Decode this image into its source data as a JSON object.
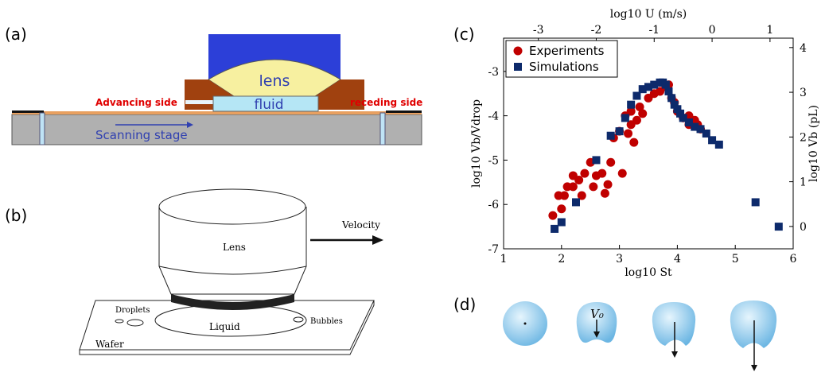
{
  "panels": {
    "a": {
      "label": "(a)",
      "lens": "lens",
      "fluid": "fluid",
      "advancing": "Advancing side",
      "receding": "receding side",
      "stage": "Scanning stage"
    },
    "b": {
      "label": "(b)",
      "lens": "Lens",
      "velocity": "Velocity",
      "droplets": "Droplets",
      "bubbles": "Bubbles",
      "liquid": "Liquid",
      "wafer": "Wafer"
    },
    "c": {
      "label": "(c)"
    },
    "d": {
      "label": "(d)",
      "v0": "V₀"
    }
  },
  "chart_data": {
    "type": "scatter",
    "xlabel": "log10 St",
    "ylabel": "log10 Vb/Vdrop",
    "x2label": "log10 U (m/s)",
    "y2label": "log10 Vb (pL)",
    "xlim": [
      1,
      6
    ],
    "xticks": [
      1,
      2,
      3,
      4,
      5,
      6
    ],
    "ylim": [
      -7,
      -2.25
    ],
    "yticks": [
      -7,
      -6,
      -5,
      -4,
      -3
    ],
    "x2lim": [
      -3.6,
      1.4
    ],
    "x2ticks": [
      -3,
      -2,
      -1,
      0,
      1
    ],
    "y2lim": [
      -0.5,
      4.21
    ],
    "y2ticks": [
      0,
      1,
      2,
      3,
      4
    ],
    "legend": "upper left",
    "series": [
      {
        "name": "Experiments",
        "color": "#c00000",
        "marker": "circle",
        "x": [
          1.85,
          1.95,
          2.0,
          2.05,
          2.1,
          2.2,
          2.2,
          2.3,
          2.35,
          2.4,
          2.5,
          2.55,
          2.6,
          2.7,
          2.75,
          2.8,
          2.85,
          2.9,
          3.0,
          3.05,
          3.1,
          3.15,
          3.2,
          3.2,
          3.25,
          3.3,
          3.35,
          3.4,
          3.5,
          3.6,
          3.7,
          3.8,
          3.85,
          3.9,
          3.95,
          4.0,
          4.1,
          4.2,
          4.3,
          4.35,
          4.4,
          4.2
        ],
        "values": [
          -6.25,
          -5.8,
          -6.1,
          -5.8,
          -5.6,
          -5.35,
          -5.6,
          -5.45,
          -5.8,
          -5.3,
          -5.05,
          -5.6,
          -5.35,
          -5.3,
          -5.75,
          -5.55,
          -5.05,
          -4.5,
          -4.35,
          -5.3,
          -4.0,
          -4.4,
          -3.9,
          -4.2,
          -4.6,
          -4.1,
          -3.8,
          -3.95,
          -3.6,
          -3.5,
          -3.45,
          -3.35,
          -3.3,
          -3.6,
          -3.7,
          -3.9,
          -4.05,
          -4.0,
          -4.1,
          -4.2,
          -4.3,
          -4.2
        ]
      },
      {
        "name": "Simulations",
        "color": "#0d2a6b",
        "marker": "square",
        "x": [
          1.88,
          2.0,
          2.25,
          2.6,
          2.85,
          3.0,
          3.1,
          3.2,
          3.3,
          3.4,
          3.5,
          3.6,
          3.7,
          3.75,
          3.8,
          3.85,
          3.9,
          3.95,
          4.0,
          4.05,
          4.1,
          4.2,
          4.3,
          4.4,
          4.5,
          4.6,
          4.72,
          5.35,
          5.75
        ],
        "values": [
          -6.55,
          -6.4,
          -5.95,
          -5.0,
          -4.45,
          -4.35,
          -4.05,
          -3.75,
          -3.55,
          -3.4,
          -3.35,
          -3.3,
          -3.25,
          -3.25,
          -3.3,
          -3.45,
          -3.6,
          -3.75,
          -3.85,
          -3.95,
          -4.05,
          -4.15,
          -4.25,
          -4.3,
          -4.4,
          -4.55,
          -4.65,
          -5.95,
          -6.5
        ]
      }
    ]
  }
}
